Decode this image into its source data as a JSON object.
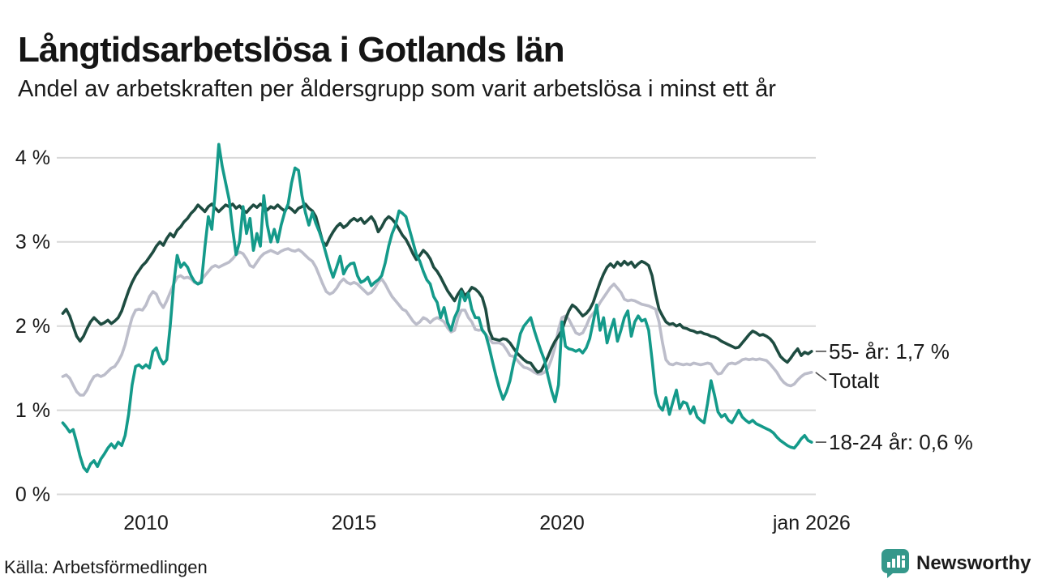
{
  "brand": {
    "name": "Newsworthy",
    "color": "#35988b"
  },
  "chart_data": {
    "type": "line",
    "title": "Långtidsarbetslösa i Gotlands län",
    "subtitle": "Andel av arbetskraften per åldersgrupp som varit arbetslösa i minst ett år",
    "source": "Källa: Arbetsförmedlingen",
    "unit": "%",
    "x_start": "2008-01",
    "x_end": "2026-01",
    "x_frequency": "monthly",
    "ylim": [
      0,
      4.3
    ],
    "grid": "horizontal",
    "legend_position": "right-of-line-ends",
    "y_ticks": [
      {
        "value": 0,
        "label": "0 %"
      },
      {
        "value": 1,
        "label": "1 %"
      },
      {
        "value": 2,
        "label": "2 %"
      },
      {
        "value": 3,
        "label": "3 %"
      },
      {
        "value": 4,
        "label": "4 %"
      }
    ],
    "x_ticks": [
      {
        "label": "2010",
        "year": 2010
      },
      {
        "label": "2015",
        "year": 2015
      },
      {
        "label": "2020",
        "year": 2020
      },
      {
        "label": "jan 2026",
        "year": 2026
      }
    ],
    "series": [
      {
        "name": "55- år",
        "label": "55- år: 1,7 %",
        "last_value_label": "1,7 %",
        "color": "#1e4c41",
        "values": [
          2.15,
          2.2,
          2.12,
          2.0,
          1.88,
          1.82,
          1.88,
          1.97,
          2.05,
          2.1,
          2.06,
          2.02,
          2.04,
          2.07,
          2.03,
          2.06,
          2.1,
          2.18,
          2.3,
          2.42,
          2.52,
          2.6,
          2.66,
          2.72,
          2.76,
          2.82,
          2.88,
          2.95,
          3.0,
          2.96,
          3.04,
          3.1,
          3.06,
          3.14,
          3.18,
          3.24,
          3.28,
          3.34,
          3.38,
          3.44,
          3.4,
          3.36,
          3.42,
          3.45,
          3.4,
          3.36,
          3.4,
          3.44,
          3.42,
          3.45,
          3.4,
          3.43,
          3.38,
          3.35,
          3.4,
          3.44,
          3.41,
          3.45,
          3.42,
          3.38,
          3.42,
          3.4,
          3.44,
          3.4,
          3.37,
          3.42,
          3.39,
          3.35,
          3.4,
          3.42,
          3.45,
          3.4,
          3.37,
          3.3,
          3.15,
          3.0,
          2.96,
          3.05,
          3.12,
          3.18,
          3.22,
          3.17,
          3.2,
          3.25,
          3.28,
          3.25,
          3.28,
          3.22,
          3.26,
          3.3,
          3.24,
          3.12,
          3.18,
          3.26,
          3.3,
          3.27,
          3.22,
          3.15,
          3.08,
          3.03,
          2.95,
          2.86,
          2.79,
          2.84,
          2.9,
          2.86,
          2.8,
          2.7,
          2.65,
          2.58,
          2.5,
          2.42,
          2.36,
          2.3,
          2.38,
          2.44,
          2.36,
          2.4,
          2.46,
          2.44,
          2.4,
          2.34,
          2.2,
          1.95,
          1.85,
          1.84,
          1.83,
          1.85,
          1.84,
          1.8,
          1.74,
          1.68,
          1.64,
          1.6,
          1.57,
          1.56,
          1.5,
          1.45,
          1.47,
          1.55,
          1.64,
          1.74,
          1.82,
          1.88,
          1.95,
          2.08,
          2.18,
          2.25,
          2.22,
          2.17,
          2.12,
          2.15,
          2.2,
          2.28,
          2.4,
          2.52,
          2.62,
          2.7,
          2.74,
          2.7,
          2.76,
          2.72,
          2.77,
          2.73,
          2.76,
          2.7,
          2.74,
          2.77,
          2.75,
          2.72,
          2.6,
          2.38,
          2.2,
          2.12,
          2.05,
          2.02,
          2.03,
          2.0,
          2.02,
          1.98,
          1.97,
          1.95,
          1.94,
          1.92,
          1.93,
          1.91,
          1.9,
          1.88,
          1.87,
          1.85,
          1.82,
          1.8,
          1.78,
          1.76,
          1.74,
          1.75,
          1.8,
          1.85,
          1.9,
          1.94,
          1.92,
          1.89,
          1.9,
          1.88,
          1.85,
          1.8,
          1.72,
          1.64,
          1.6,
          1.57,
          1.62,
          1.68,
          1.73,
          1.65,
          1.69,
          1.67,
          1.7
        ]
      },
      {
        "name": "Totalt",
        "label": "Totalt",
        "last_value_label": "",
        "color": "#bcbdca",
        "values": [
          1.4,
          1.42,
          1.38,
          1.3,
          1.22,
          1.18,
          1.18,
          1.24,
          1.33,
          1.4,
          1.42,
          1.4,
          1.42,
          1.46,
          1.5,
          1.52,
          1.58,
          1.66,
          1.78,
          1.95,
          2.1,
          2.19,
          2.2,
          2.19,
          2.25,
          2.35,
          2.41,
          2.38,
          2.28,
          2.22,
          2.3,
          2.4,
          2.5,
          2.58,
          2.6,
          2.57,
          2.58,
          2.56,
          2.52,
          2.5,
          2.55,
          2.6,
          2.65,
          2.7,
          2.72,
          2.7,
          2.72,
          2.74,
          2.76,
          2.8,
          2.85,
          2.88,
          2.86,
          2.8,
          2.72,
          2.7,
          2.76,
          2.82,
          2.86,
          2.88,
          2.9,
          2.88,
          2.86,
          2.89,
          2.91,
          2.92,
          2.9,
          2.89,
          2.91,
          2.88,
          2.84,
          2.8,
          2.77,
          2.7,
          2.6,
          2.5,
          2.41,
          2.38,
          2.4,
          2.45,
          2.52,
          2.56,
          2.52,
          2.5,
          2.52,
          2.5,
          2.46,
          2.42,
          2.38,
          2.4,
          2.45,
          2.52,
          2.56,
          2.5,
          2.42,
          2.35,
          2.3,
          2.25,
          2.2,
          2.18,
          2.12,
          2.06,
          2.02,
          2.05,
          2.1,
          2.08,
          2.04,
          2.08,
          2.1,
          2.08,
          2.05,
          1.98,
          1.93,
          1.95,
          2.1,
          2.19,
          2.19,
          2.1,
          2.05,
          1.96,
          1.95,
          1.96,
          1.9,
          1.85,
          1.8,
          1.8,
          1.8,
          1.78,
          1.72,
          1.65,
          1.64,
          1.6,
          1.55,
          1.51,
          1.5,
          1.48,
          1.45,
          1.43,
          1.43,
          1.45,
          1.5,
          1.61,
          1.75,
          1.96,
          2.1,
          2.12,
          2.08,
          2.0,
          1.92,
          1.9,
          1.92,
          2.0,
          2.1,
          2.15,
          2.2,
          2.28,
          2.34,
          2.4,
          2.46,
          2.5,
          2.45,
          2.4,
          2.32,
          2.3,
          2.31,
          2.3,
          2.28,
          2.26,
          2.25,
          2.24,
          2.22,
          2.2,
          2.05,
          1.8,
          1.6,
          1.55,
          1.54,
          1.56,
          1.55,
          1.54,
          1.55,
          1.54,
          1.56,
          1.55,
          1.54,
          1.55,
          1.56,
          1.55,
          1.48,
          1.43,
          1.44,
          1.5,
          1.55,
          1.56,
          1.55,
          1.57,
          1.6,
          1.61,
          1.6,
          1.61,
          1.6,
          1.61,
          1.6,
          1.59,
          1.55,
          1.5,
          1.45,
          1.38,
          1.33,
          1.3,
          1.29,
          1.31,
          1.36,
          1.4,
          1.43,
          1.44,
          1.45
        ]
      },
      {
        "name": "18-24 år",
        "label": "18-24 år: 0,6 %",
        "last_value_label": "0,6 %",
        "color": "#149a8a",
        "values": [
          0.85,
          0.8,
          0.74,
          0.77,
          0.62,
          0.45,
          0.32,
          0.27,
          0.36,
          0.4,
          0.33,
          0.42,
          0.48,
          0.55,
          0.6,
          0.55,
          0.62,
          0.58,
          0.7,
          0.95,
          1.3,
          1.52,
          1.54,
          1.5,
          1.54,
          1.5,
          1.7,
          1.74,
          1.62,
          1.55,
          1.6,
          2.0,
          2.5,
          2.84,
          2.7,
          2.75,
          2.7,
          2.6,
          2.53,
          2.5,
          2.52,
          2.94,
          3.3,
          3.15,
          3.6,
          4.16,
          3.9,
          3.7,
          3.5,
          3.15,
          2.85,
          3.0,
          3.42,
          3.1,
          3.28,
          2.9,
          3.1,
          2.95,
          3.55,
          3.2,
          3.0,
          3.15,
          3.0,
          3.2,
          3.35,
          3.45,
          3.7,
          3.88,
          3.85,
          3.55,
          3.35,
          3.2,
          3.35,
          3.22,
          3.12,
          3.0,
          2.85,
          2.7,
          2.58,
          2.7,
          2.83,
          2.62,
          2.7,
          2.74,
          2.75,
          2.6,
          2.52,
          2.54,
          2.58,
          2.48,
          2.52,
          2.55,
          2.6,
          2.75,
          2.95,
          3.1,
          3.2,
          3.37,
          3.34,
          3.3,
          3.15,
          3.0,
          2.85,
          2.77,
          2.65,
          2.55,
          2.5,
          2.35,
          2.28,
          2.1,
          2.22,
          2.04,
          1.95,
          2.1,
          2.19,
          2.41,
          2.3,
          2.39,
          2.2,
          2.1,
          2.1,
          1.95,
          1.9,
          1.75,
          1.57,
          1.4,
          1.25,
          1.13,
          1.22,
          1.35,
          1.55,
          1.71,
          1.91,
          2.0,
          2.05,
          2.1,
          1.95,
          1.82,
          1.7,
          1.59,
          1.4,
          1.23,
          1.1,
          1.3,
          2.05,
          1.76,
          1.73,
          1.72,
          1.7,
          1.72,
          1.68,
          1.74,
          1.85,
          2.05,
          2.25,
          1.95,
          2.1,
          1.8,
          1.95,
          2.08,
          1.82,
          1.95,
          2.1,
          2.18,
          1.88,
          2.05,
          2.12,
          2.06,
          2.08,
          1.95,
          1.6,
          1.2,
          1.05,
          1.0,
          1.15,
          0.95,
          1.1,
          1.24,
          1.02,
          1.1,
          1.08,
          0.96,
          1.04,
          0.92,
          0.88,
          0.85,
          1.08,
          1.35,
          1.18,
          0.98,
          0.92,
          0.95,
          0.88,
          0.85,
          0.92,
          1.0,
          0.92,
          0.88,
          0.85,
          0.88,
          0.84,
          0.82,
          0.8,
          0.78,
          0.76,
          0.73,
          0.68,
          0.64,
          0.61,
          0.58,
          0.56,
          0.55,
          0.6,
          0.66,
          0.7,
          0.64,
          0.62
        ]
      }
    ],
    "colors": {
      "grid": "#d8d8d8",
      "text": "#1a1a1a",
      "connector": "#4a4a4a"
    }
  }
}
